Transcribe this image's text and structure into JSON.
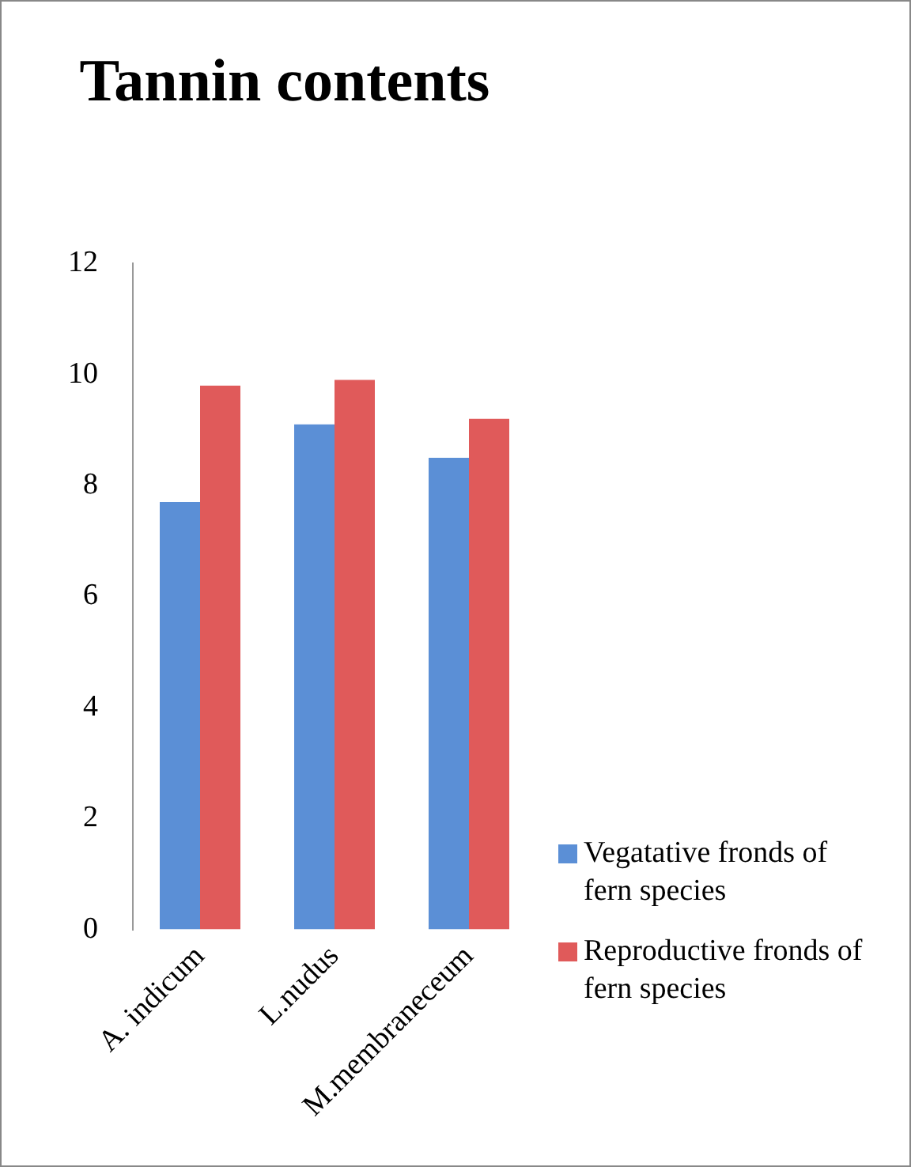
{
  "chart_data": {
    "type": "bar",
    "title": "Tannin contents",
    "categories": [
      "A. indicum",
      "L.nudus",
      "M.membraneceum"
    ],
    "series": [
      {
        "name": "Vegatative fronds of fern species",
        "color": "#5b8fd6",
        "values": [
          7.7,
          9.1,
          8.5
        ]
      },
      {
        "name": "Reproductive fronds of fern species",
        "color": "#e05a5a",
        "values": [
          9.8,
          9.9,
          9.2
        ]
      }
    ],
    "ylim": [
      0,
      12
    ],
    "yticks": [
      0,
      2,
      4,
      6,
      8,
      10,
      12
    ],
    "grid": false,
    "legend": "right"
  }
}
